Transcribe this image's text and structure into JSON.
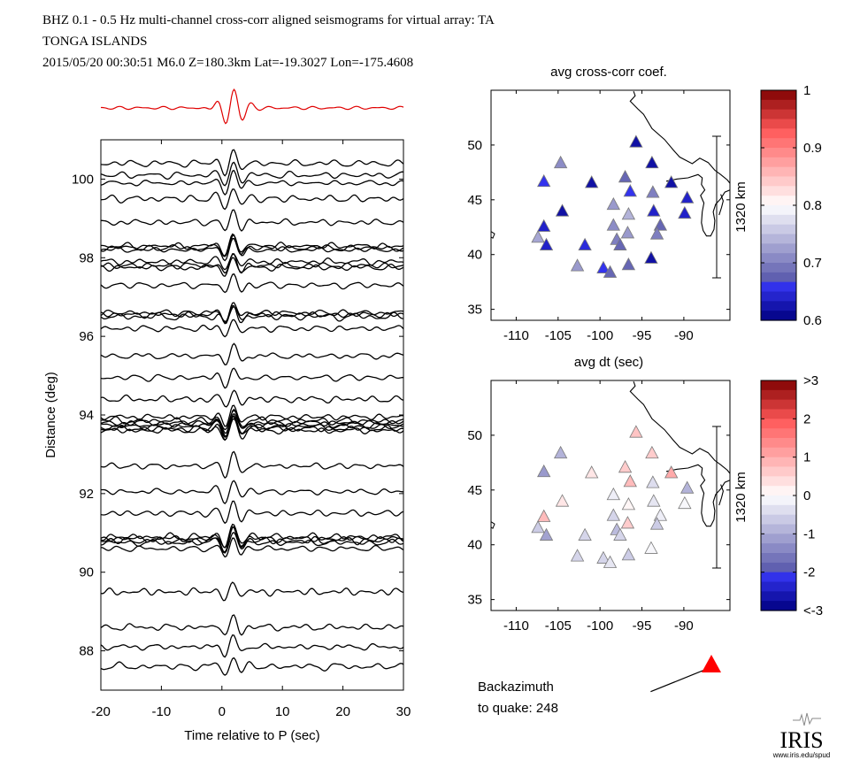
{
  "header": {
    "line1": "BHZ  0.1 - 0.5 Hz  multi-channel cross-corr aligned seismograms for virtual array: TA",
    "line2": "TONGA ISLANDS",
    "line3": "2015/05/20  00:30:51  M6.0  Z=180.3km Lat=-19.3027 Lon=-175.4608"
  },
  "colors": {
    "stack": "#e00000",
    "trace": "#000000",
    "triangle_marker": "#ff0000"
  },
  "chart_data": [
    {
      "type": "line",
      "id": "seismograms",
      "xlabel": "Time relative to P (sec)",
      "ylabel": "Distance (deg)",
      "xlim": [
        -20,
        30
      ],
      "ylim": [
        87,
        101
      ],
      "xticks": [
        "-20",
        "-10",
        "0",
        "10",
        "20",
        "30"
      ],
      "yticks": [
        "88",
        "90",
        "92",
        "94",
        "96",
        "98",
        "100"
      ],
      "trace_distances_deg": [
        100.4,
        100.1,
        99.9,
        99.5,
        98.9,
        98.3,
        98.25,
        98.2,
        97.9,
        97.8,
        97.75,
        97.3,
        96.6,
        96.55,
        96.5,
        96.2,
        95.5,
        94.95,
        94.4,
        93.95,
        93.85,
        93.8,
        93.75,
        93.7,
        93.65,
        93.6,
        92.7,
        92.05,
        91.5,
        90.9,
        90.85,
        90.8,
        90.75,
        90.6,
        89.5,
        88.6,
        88.1,
        87.6
      ],
      "stack_trace": "red stacked waveform above the record section"
    },
    {
      "type": "scatter",
      "id": "map-coef",
      "title": "avg cross-corr coef.",
      "xlim": [
        -113,
        -84.5
      ],
      "ylim": [
        34,
        55
      ],
      "xticks": [
        "-110",
        "-105",
        "-100",
        "-95",
        "-90"
      ],
      "yticks": [
        "35",
        "40",
        "45",
        "50"
      ],
      "scale_label": "1320 km",
      "colorbar": {
        "ticks": [
          "1",
          "0.9",
          "0.8",
          "0.7",
          "0.6"
        ],
        "range": [
          0.6,
          1.0
        ],
        "colormap": "blue-white-red"
      },
      "stations": [
        {
          "lon": -95.7,
          "lat": 50.3,
          "v": 0.62
        },
        {
          "lon": -104.7,
          "lat": 48.4,
          "v": 0.71
        },
        {
          "lon": -93.8,
          "lat": 48.4,
          "v": 0.62
        },
        {
          "lon": -97.0,
          "lat": 47.1,
          "v": 0.68
        },
        {
          "lon": -106.7,
          "lat": 46.7,
          "v": 0.66
        },
        {
          "lon": -101.0,
          "lat": 46.6,
          "v": 0.62
        },
        {
          "lon": -91.5,
          "lat": 46.6,
          "v": 0.62
        },
        {
          "lon": -96.4,
          "lat": 45.8,
          "v": 0.66
        },
        {
          "lon": -93.7,
          "lat": 45.7,
          "v": 0.7
        },
        {
          "lon": -89.6,
          "lat": 45.2,
          "v": 0.64
        },
        {
          "lon": -98.4,
          "lat": 44.6,
          "v": 0.72
        },
        {
          "lon": -104.5,
          "lat": 44.0,
          "v": 0.62
        },
        {
          "lon": -93.6,
          "lat": 44.0,
          "v": 0.64
        },
        {
          "lon": -89.9,
          "lat": 43.8,
          "v": 0.64
        },
        {
          "lon": -96.6,
          "lat": 43.7,
          "v": 0.74
        },
        {
          "lon": -98.4,
          "lat": 42.7,
          "v": 0.71
        },
        {
          "lon": -92.8,
          "lat": 42.7,
          "v": 0.68
        },
        {
          "lon": -106.7,
          "lat": 42.6,
          "v": 0.64
        },
        {
          "lon": -96.7,
          "lat": 42.0,
          "v": 0.72
        },
        {
          "lon": -93.2,
          "lat": 41.9,
          "v": 0.7
        },
        {
          "lon": -107.4,
          "lat": 41.6,
          "v": 0.73
        },
        {
          "lon": -98.0,
          "lat": 41.4,
          "v": 0.7
        },
        {
          "lon": -97.6,
          "lat": 40.9,
          "v": 0.68
        },
        {
          "lon": -106.4,
          "lat": 40.9,
          "v": 0.64
        },
        {
          "lon": -101.8,
          "lat": 40.9,
          "v": 0.65
        },
        {
          "lon": -93.9,
          "lat": 39.7,
          "v": 0.62
        },
        {
          "lon": -102.7,
          "lat": 39.0,
          "v": 0.72
        },
        {
          "lon": -96.6,
          "lat": 39.1,
          "v": 0.68
        },
        {
          "lon": -99.6,
          "lat": 38.8,
          "v": 0.66
        },
        {
          "lon": -98.8,
          "lat": 38.4,
          "v": 0.68
        }
      ]
    },
    {
      "type": "scatter",
      "id": "map-dt",
      "title": "avg dt (sec)",
      "xlim": [
        -113,
        -84.5
      ],
      "ylim": [
        34,
        55
      ],
      "xticks": [
        "-110",
        "-105",
        "-100",
        "-95",
        "-90"
      ],
      "yticks": [
        "35",
        "40",
        "45",
        "50"
      ],
      "scale_label": "1320 km",
      "colorbar": {
        "ticks": [
          ">3",
          "2",
          "1",
          "0",
          "-1",
          "-2",
          "<-3"
        ],
        "range": [
          -3,
          3
        ],
        "colormap": "blue-white-red"
      },
      "stations": [
        {
          "lon": -95.7,
          "lat": 50.3,
          "v": 0.7
        },
        {
          "lon": -104.7,
          "lat": 48.4,
          "v": -0.9
        },
        {
          "lon": -93.8,
          "lat": 48.4,
          "v": 0.6
        },
        {
          "lon": -97.0,
          "lat": 47.1,
          "v": 0.6
        },
        {
          "lon": -106.7,
          "lat": 46.7,
          "v": -1.2
        },
        {
          "lon": -101.0,
          "lat": 46.6,
          "v": 0.3
        },
        {
          "lon": -91.5,
          "lat": 46.6,
          "v": 1.0
        },
        {
          "lon": -96.4,
          "lat": 45.8,
          "v": 0.8
        },
        {
          "lon": -93.7,
          "lat": 45.7,
          "v": -0.4
        },
        {
          "lon": -89.6,
          "lat": 45.2,
          "v": -0.9
        },
        {
          "lon": -98.4,
          "lat": 44.6,
          "v": -0.2
        },
        {
          "lon": -104.5,
          "lat": 44.0,
          "v": 0.3
        },
        {
          "lon": -93.6,
          "lat": 44.0,
          "v": -0.3
        },
        {
          "lon": -89.9,
          "lat": 43.8,
          "v": -0.1
        },
        {
          "lon": -96.6,
          "lat": 43.7,
          "v": 0.1
        },
        {
          "lon": -98.4,
          "lat": 42.7,
          "v": -0.5
        },
        {
          "lon": -92.8,
          "lat": 42.7,
          "v": -0.2
        },
        {
          "lon": -106.7,
          "lat": 42.6,
          "v": 0.8
        },
        {
          "lon": -96.7,
          "lat": 42.0,
          "v": 0.6
        },
        {
          "lon": -93.2,
          "lat": 41.9,
          "v": -0.6
        },
        {
          "lon": -107.4,
          "lat": 41.6,
          "v": -0.6
        },
        {
          "lon": -98.0,
          "lat": 41.4,
          "v": -0.8
        },
        {
          "lon": -97.6,
          "lat": 40.9,
          "v": -0.5
        },
        {
          "lon": -106.4,
          "lat": 40.9,
          "v": -1.1
        },
        {
          "lon": -101.8,
          "lat": 40.9,
          "v": -0.5
        },
        {
          "lon": -93.9,
          "lat": 39.7,
          "v": -0.1
        },
        {
          "lon": -102.7,
          "lat": 39.0,
          "v": -0.5
        },
        {
          "lon": -96.6,
          "lat": 39.1,
          "v": -0.6
        },
        {
          "lon": -99.6,
          "lat": 38.8,
          "v": -0.5
        },
        {
          "lon": -98.8,
          "lat": 38.4,
          "v": -0.3
        }
      ]
    }
  ],
  "backazimuth": {
    "label1": "Backazimuth",
    "label2": "to quake:  248",
    "value_deg": 248
  },
  "logo": {
    "text": "IRIS",
    "url_text": "www.iris.edu/spud"
  }
}
